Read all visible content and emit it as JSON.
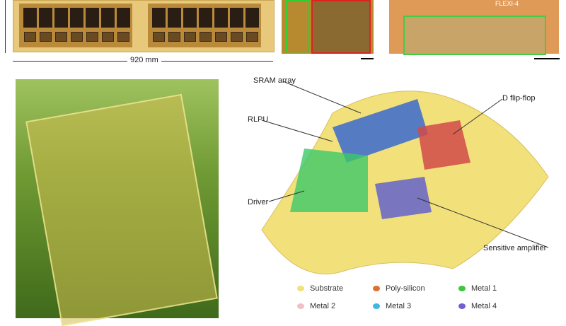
{
  "top": {
    "dimension_label": "920 mm",
    "chip_label": "FLEXI-4"
  },
  "diagram": {
    "labels": [
      "SRAM array",
      "RLPU",
      "Driver",
      "D flip-flop",
      "Sensitive amplifier"
    ]
  },
  "legend": [
    {
      "label": "Substrate",
      "color": "#f2e07a"
    },
    {
      "label": "Poly-silicon",
      "color": "#e07030"
    },
    {
      "label": "Metal 1",
      "color": "#3cc83c"
    },
    {
      "label": "Metal 2",
      "color": "#f0c0c8"
    },
    {
      "label": "Metal 3",
      "color": "#40b8e0"
    },
    {
      "label": "Metal 4",
      "color": "#7060d0"
    }
  ]
}
